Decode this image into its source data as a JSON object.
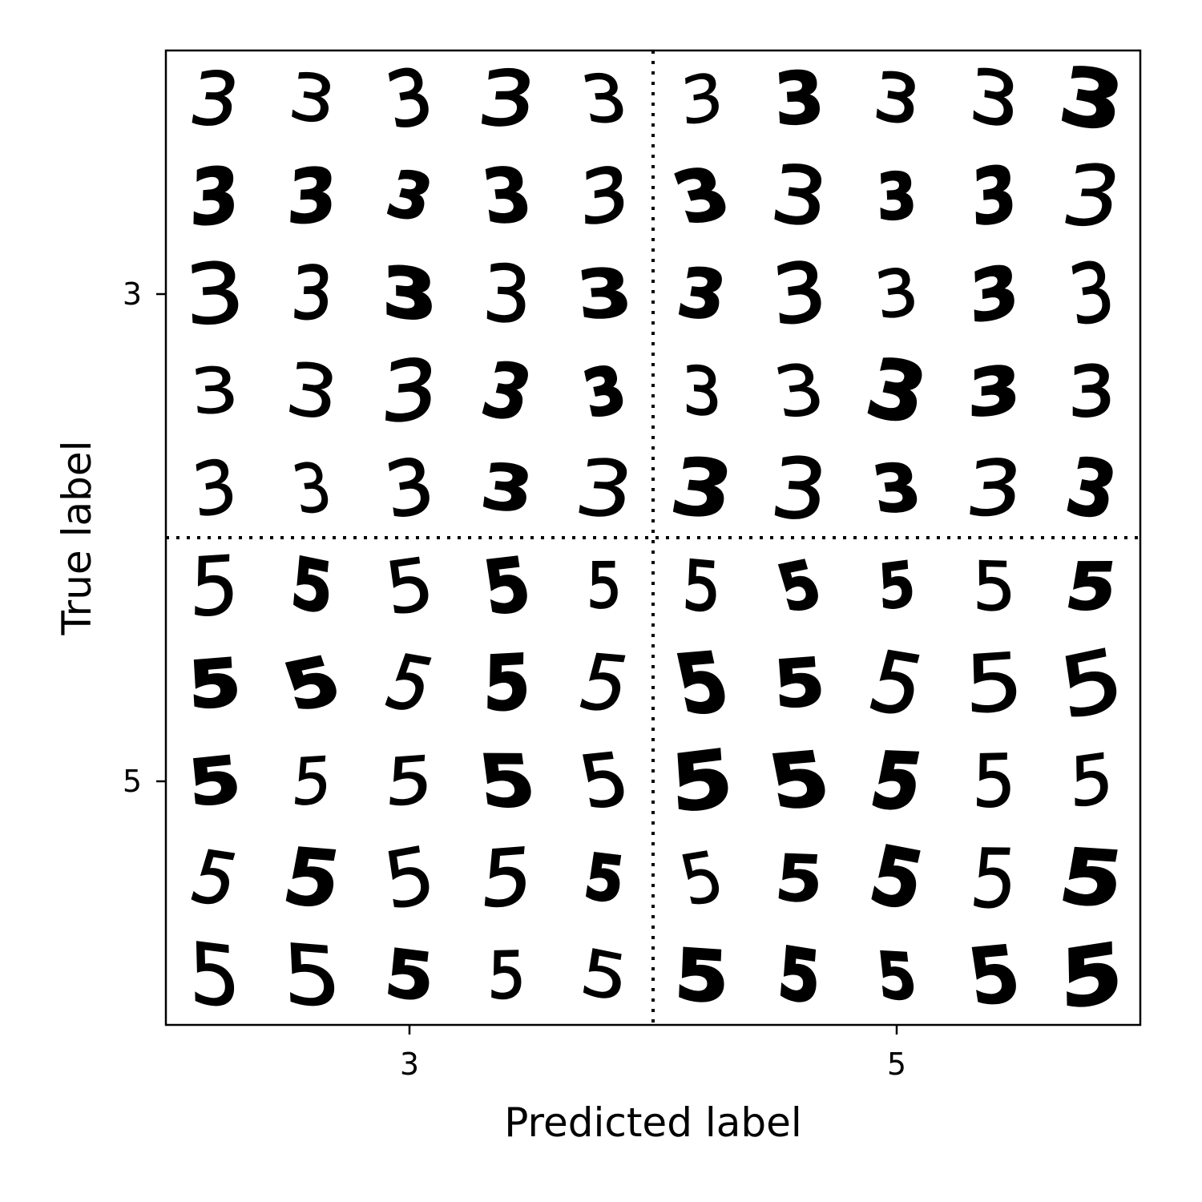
{
  "chart_data": {
    "type": "image-grid",
    "title": "",
    "xlabel": "Predicted label",
    "ylabel": "True label",
    "x_ticks": [
      "3",
      "5"
    ],
    "y_ticks": [
      "3",
      "5"
    ],
    "cell_rows_per_block": 5,
    "cell_cols_per_block": 5,
    "blocks": [
      {
        "true_label": "3",
        "predicted_label": "3",
        "images": 25,
        "digit": "3"
      },
      {
        "true_label": "3",
        "predicted_label": "5",
        "images": 25,
        "digit": "3"
      },
      {
        "true_label": "5",
        "predicted_label": "3",
        "images": 25,
        "digit": "5"
      },
      {
        "true_label": "5",
        "predicted_label": "5",
        "images": 25,
        "digit": "5"
      }
    ],
    "separators": "dotted"
  }
}
